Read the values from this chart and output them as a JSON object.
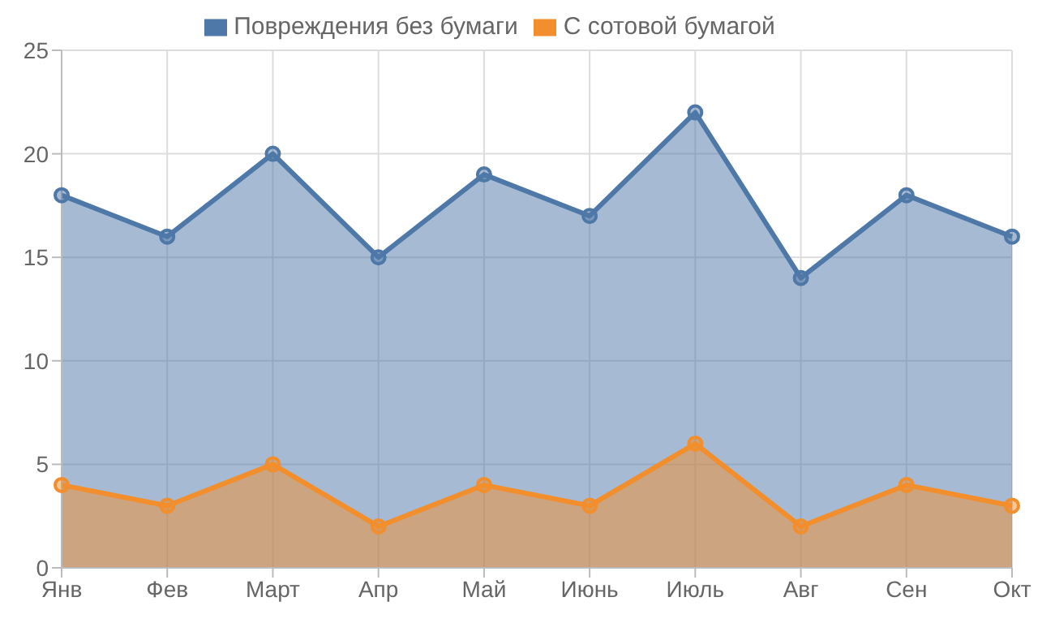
{
  "chart_data": {
    "type": "area",
    "categories": [
      "Янв",
      "Фев",
      "Март",
      "Апр",
      "Май",
      "Июнь",
      "Июль",
      "Авг",
      "Сен",
      "Окт"
    ],
    "series": [
      {
        "name": "Повреждения без бумаги",
        "color": "#4e78a8",
        "values": [
          18,
          16,
          20,
          15,
          19,
          17,
          22,
          14,
          18,
          16
        ]
      },
      {
        "name": "С сотовой бумагой",
        "color": "#f28e2b",
        "values": [
          4,
          3,
          5,
          2,
          4,
          3,
          6,
          2,
          4,
          3
        ]
      }
    ],
    "ylim": [
      0,
      25
    ],
    "yticks": [
      0,
      5,
      10,
      15,
      20,
      25
    ],
    "grid": true,
    "legend": "top",
    "marker": "circle",
    "line_style": "solid"
  }
}
